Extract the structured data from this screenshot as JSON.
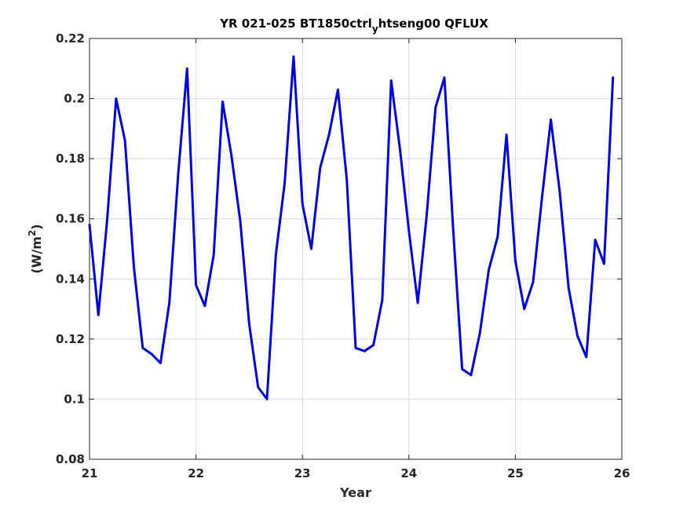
{
  "chart_data": {
    "type": "line",
    "title_parts": {
      "before": "YR 021-025 BT1850ctrl",
      "subscript": "y",
      "after": "htseng00 QFLUX"
    },
    "xlabel": "Year",
    "ylabel_parts": {
      "before": "(W/m",
      "superscript": "2",
      "after": ")"
    },
    "xlim": [
      21,
      26
    ],
    "ylim": [
      0.08,
      0.22
    ],
    "xticks": [
      21,
      22,
      23,
      24,
      25,
      26
    ],
    "xtick_labels": [
      "21",
      "22",
      "23",
      "24",
      "25",
      "26"
    ],
    "yticks": [
      0.08,
      0.1,
      0.12,
      0.14,
      0.16,
      0.18,
      0.2,
      0.22
    ],
    "ytick_labels": [
      "0.08",
      "0.1",
      "0.12",
      "0.14",
      "0.16",
      "0.18",
      "0.2",
      "0.22"
    ],
    "grid": true,
    "line_color": "#0000e6",
    "x": [
      21.0,
      21.083,
      21.167,
      21.25,
      21.333,
      21.417,
      21.5,
      21.583,
      21.667,
      21.75,
      21.833,
      21.917,
      22.0,
      22.083,
      22.167,
      22.25,
      22.333,
      22.417,
      22.5,
      22.583,
      22.667,
      22.75,
      22.833,
      22.917,
      23.0,
      23.083,
      23.167,
      23.25,
      23.333,
      23.417,
      23.5,
      23.583,
      23.667,
      23.75,
      23.833,
      23.917,
      24.0,
      24.083,
      24.167,
      24.25,
      24.333,
      24.417,
      24.5,
      24.583,
      24.667,
      24.75,
      24.833,
      24.917,
      25.0,
      25.083,
      25.167,
      25.25,
      25.333,
      25.417,
      25.5,
      25.583,
      25.667,
      25.75,
      25.833,
      25.917
    ],
    "y": [
      0.158,
      0.128,
      0.16,
      0.2,
      0.186,
      0.144,
      0.117,
      0.115,
      0.112,
      0.132,
      0.175,
      0.21,
      0.138,
      0.131,
      0.148,
      0.199,
      0.181,
      0.159,
      0.125,
      0.104,
      0.1,
      0.148,
      0.172,
      0.214,
      0.165,
      0.15,
      0.177,
      0.188,
      0.203,
      0.173,
      0.117,
      0.116,
      0.118,
      0.133,
      0.206,
      0.183,
      0.156,
      0.132,
      0.161,
      0.197,
      0.207,
      0.156,
      0.11,
      0.108,
      0.122,
      0.143,
      0.154,
      0.188,
      0.146,
      0.13,
      0.139,
      0.167,
      0.193,
      0.169,
      0.137,
      0.121,
      0.114,
      0.153,
      0.145,
      0.207
    ]
  }
}
